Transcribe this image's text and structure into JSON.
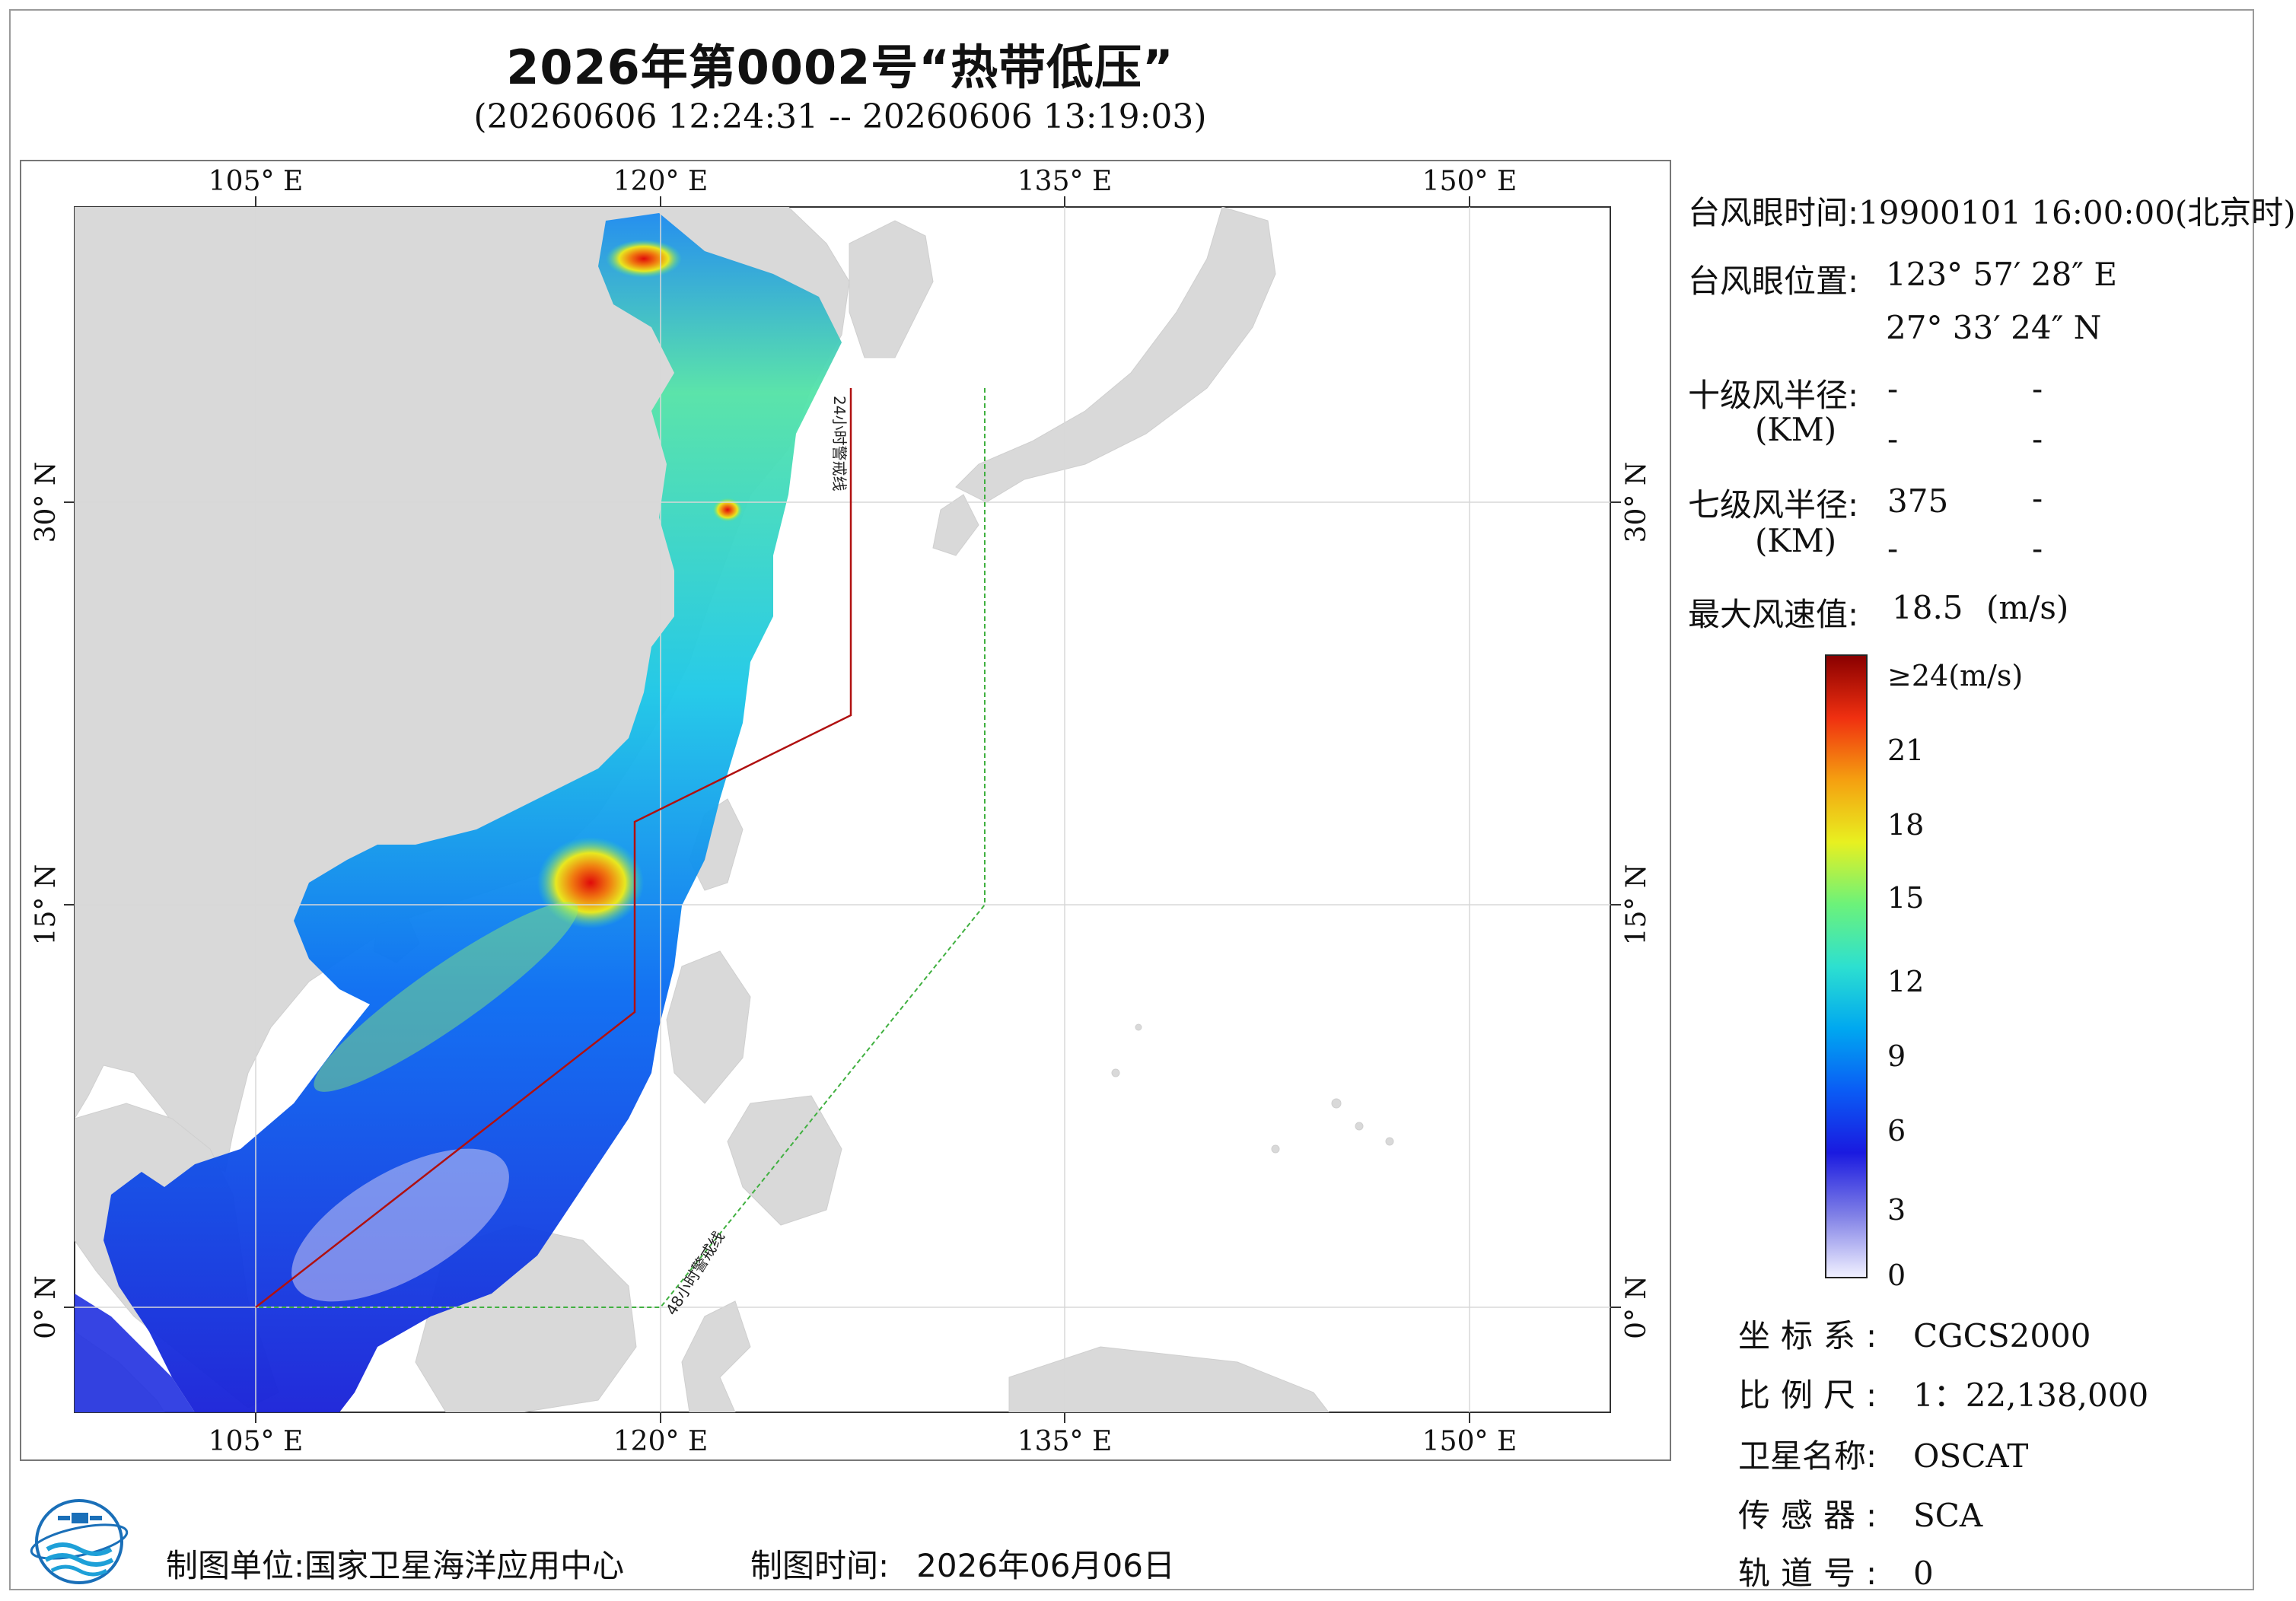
{
  "header": {
    "title": "2026年第0002号“热带低压”",
    "time_range": "(20260606 12:24:31 -- 20260606 13:19:03)"
  },
  "map": {
    "lon_labels": [
      "105° E",
      "120° E",
      "135° E",
      "150° E"
    ],
    "lat_labels": [
      "30° N",
      "15° N",
      "0° N"
    ],
    "lon_ticks": [
      105,
      120,
      135,
      150
    ],
    "lat_ticks": [
      30,
      15,
      0
    ],
    "lon_range": [
      98,
      155
    ],
    "lat_range": [
      -4,
      41
    ],
    "warning_line_24h": "24小时警戒线",
    "warning_line_48h": "48小时警戒线",
    "land_color": "#d9d9d9",
    "ocean_color": "#ffffff"
  },
  "typhoon": {
    "eye_time_label": "台风眼时间:",
    "eye_time_value": "19900101 16:00:00(北京时)",
    "eye_pos_label": "台风眼位置:",
    "eye_lon": "123° 57′ 28″ E",
    "eye_lat": "27° 33′ 24″ N",
    "r10_label": "十级风半径:",
    "r10_unit": "(KM)",
    "r10_values": [
      "-",
      "-",
      "-",
      "-"
    ],
    "r7_label": "七级风半径:",
    "r7_unit": "(KM)",
    "r7_values": [
      "375",
      "-",
      "-",
      "-"
    ],
    "max_wind_label": "最大风速值:",
    "max_wind_value": "18.5",
    "max_wind_unit": "(m/s)"
  },
  "colorbar": {
    "labels": [
      "≥24(m/s)",
      "21",
      "18",
      "15",
      "12",
      "9",
      "6",
      "3",
      "0"
    ],
    "stops": [
      "#f0f0ff",
      "#7f7fe6",
      "#1a1ae0",
      "#0a5cf5",
      "#00a8f0",
      "#2de0d0",
      "#6cf27a",
      "#e8f020",
      "#f5a010",
      "#f03010",
      "#8a0000"
    ]
  },
  "meta": {
    "crs_label": "坐标系:",
    "crs_value": "CGCS2000",
    "scale_label": "比例尺:",
    "scale_value": "1：22,138,000",
    "satellite_label": "卫星名称:",
    "satellite_value": "OSCAT",
    "sensor_label": "传感器:",
    "sensor_value": "SCA",
    "orbit_label": "轨道号:",
    "orbit_value": "0"
  },
  "footer": {
    "maker_label": "制图单位:",
    "maker_value": "国家卫星海洋应用中心",
    "made_time_label": "制图时间:",
    "made_time_value": "2026年06月06日"
  }
}
